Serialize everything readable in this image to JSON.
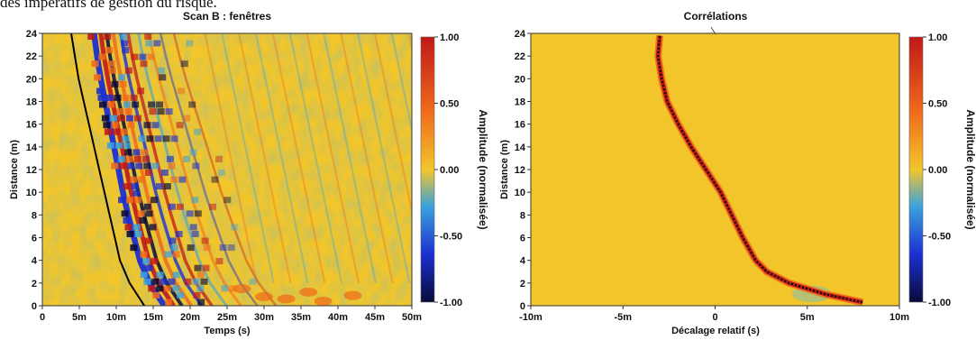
{
  "header": {
    "text": "des impératifs de gestion du risque."
  },
  "colorbar": {
    "ticks": [
      {
        "v": 1.0,
        "label": "1.00"
      },
      {
        "v": 0.5,
        "label": "0.50"
      },
      {
        "v": 0.0,
        "label": "0.00"
      },
      {
        "v": -0.5,
        "label": "-0.50"
      },
      {
        "v": -1.0,
        "label": "-1.00"
      }
    ],
    "label": "Amplitude (normalisée)",
    "colors": [
      "#0a0a3a",
      "#1b2fd1",
      "#3aa2de",
      "#f2c62b",
      "#f06a1a",
      "#c01818"
    ]
  },
  "chart_data": [
    {
      "type": "heatmap",
      "title": "Scan B : fenêtres",
      "xlabel": "Temps (s)",
      "ylabel": "Distance (m)",
      "xlim": [
        0,
        50
      ],
      "ylim": [
        0,
        24
      ],
      "x_ticks": [
        {
          "v": 0,
          "label": "0"
        },
        {
          "v": 5,
          "label": "5m"
        },
        {
          "v": 10,
          "label": "10m"
        },
        {
          "v": 15,
          "label": "15m"
        },
        {
          "v": 20,
          "label": "20m"
        },
        {
          "v": 25,
          "label": "25m"
        },
        {
          "v": 30,
          "label": "30m"
        },
        {
          "v": 35,
          "label": "35m"
        },
        {
          "v": 40,
          "label": "40m"
        },
        {
          "v": 45,
          "label": "45m"
        },
        {
          "v": 50,
          "label": "50m"
        }
      ],
      "y_ticks": [
        0,
        2,
        4,
        6,
        8,
        10,
        12,
        14,
        16,
        18,
        20,
        22,
        24
      ],
      "arrival_curve": {
        "distance": [
          0,
          2,
          4,
          6,
          8,
          10,
          12,
          14,
          16,
          18,
          20,
          22,
          24
        ],
        "time": [
          13.8,
          11.8,
          10.5,
          9.8,
          9.1,
          8.4,
          7.7,
          7.0,
          6.3,
          5.6,
          4.9,
          4.4,
          3.9
        ]
      },
      "wavefront": {
        "distance": [
          0,
          2,
          4,
          6,
          8,
          10,
          12,
          14,
          16,
          18,
          20,
          22,
          24
        ],
        "time": [
          16.5,
          14.5,
          13.2,
          12.4,
          11.6,
          10.9,
          10.3,
          9.7,
          9.1,
          8.5,
          7.9,
          7.4,
          7.0
        ]
      },
      "value_range": [
        -1.0,
        1.0
      ]
    },
    {
      "type": "heatmap",
      "title": "Corrélations",
      "xlabel": "Décalage relatif (s)",
      "ylabel": "Distance (m)",
      "xlim": [
        -10,
        10
      ],
      "ylim": [
        0,
        24
      ],
      "x_ticks": [
        {
          "v": -10,
          "label": "-10m"
        },
        {
          "v": -5,
          "label": "-5m"
        },
        {
          "v": 0,
          "label": "0"
        },
        {
          "v": 5,
          "label": "5m"
        },
        {
          "v": 10,
          "label": "10m"
        }
      ],
      "y_ticks": [
        0,
        2,
        4,
        6,
        8,
        10,
        12,
        14,
        16,
        18,
        20,
        22,
        24
      ],
      "correlation_peak": {
        "distance": [
          0.3,
          1,
          2,
          3,
          4,
          6,
          8,
          10,
          12,
          14,
          16,
          18,
          20,
          22,
          23.8
        ],
        "lag": [
          8.0,
          6.0,
          4.0,
          2.8,
          2.2,
          1.5,
          0.9,
          0.3,
          -0.5,
          -1.3,
          -2.0,
          -2.6,
          -2.9,
          -3.1,
          -3.0
        ]
      },
      "value_range": [
        -1.0,
        1.0
      ]
    }
  ]
}
